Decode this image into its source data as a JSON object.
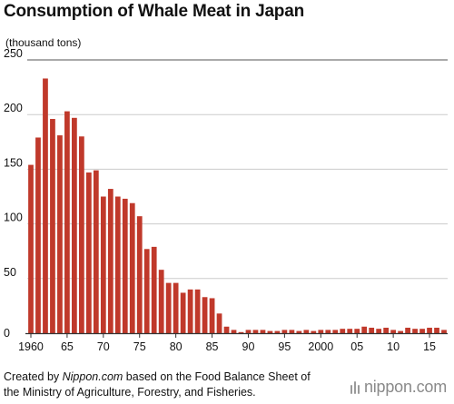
{
  "chart_data": {
    "type": "bar",
    "title": "Consumption of Whale Meat in Japan",
    "unit_label": "(thousand tons)",
    "ylim": [
      0,
      250
    ],
    "y_ticks": [
      "0",
      "50",
      "100",
      "150",
      "200",
      "250"
    ],
    "x_ticks": [
      {
        "year": 1960,
        "label": "1960"
      },
      {
        "year": 1965,
        "label": "65"
      },
      {
        "year": 1970,
        "label": "70"
      },
      {
        "year": 1975,
        "label": "75"
      },
      {
        "year": 1980,
        "label": "80"
      },
      {
        "year": 1985,
        "label": "85"
      },
      {
        "year": 1990,
        "label": "90"
      },
      {
        "year": 1995,
        "label": "95"
      },
      {
        "year": 2000,
        "label": "2000"
      },
      {
        "year": 2005,
        "label": "05"
      },
      {
        "year": 2010,
        "label": "10"
      },
      {
        "year": 2015,
        "label": "15"
      }
    ],
    "grid": true,
    "colors": {
      "bar": "#c0392b",
      "grid": "#cccccc",
      "axis": "#333333"
    },
    "x": [
      1960,
      1961,
      1962,
      1963,
      1964,
      1965,
      1966,
      1967,
      1968,
      1969,
      1970,
      1971,
      1972,
      1973,
      1974,
      1975,
      1976,
      1977,
      1978,
      1979,
      1980,
      1981,
      1982,
      1983,
      1984,
      1985,
      1986,
      1987,
      1988,
      1989,
      1990,
      1991,
      1992,
      1993,
      1994,
      1995,
      1996,
      1997,
      1998,
      1999,
      2000,
      2001,
      2002,
      2003,
      2004,
      2005,
      2006,
      2007,
      2008,
      2009,
      2010,
      2011,
      2012,
      2013,
      2014,
      2015,
      2016,
      2017
    ],
    "values": [
      154,
      179,
      233,
      196,
      181,
      203,
      197,
      180,
      147,
      149,
      125,
      132,
      125,
      123,
      119,
      107,
      77,
      79,
      58,
      46,
      46,
      37,
      40,
      40,
      33,
      32,
      18,
      6,
      3,
      1,
      3,
      3,
      3,
      2,
      2,
      3,
      3,
      2,
      3,
      2,
      3,
      3,
      3,
      4,
      4,
      4,
      6,
      5,
      4,
      5,
      3,
      2,
      5,
      4,
      4,
      5,
      5,
      3
    ]
  },
  "footer": {
    "line1_prefix": "Created by ",
    "line1_source": "Nippon.com",
    "line1_suffix": " based on the Food Balance Sheet of",
    "line2": "the Ministry of Agriculture, Forestry, and Fisheries."
  },
  "logo": {
    "text": "nippon.com",
    "name": "nippon-com-logo"
  }
}
